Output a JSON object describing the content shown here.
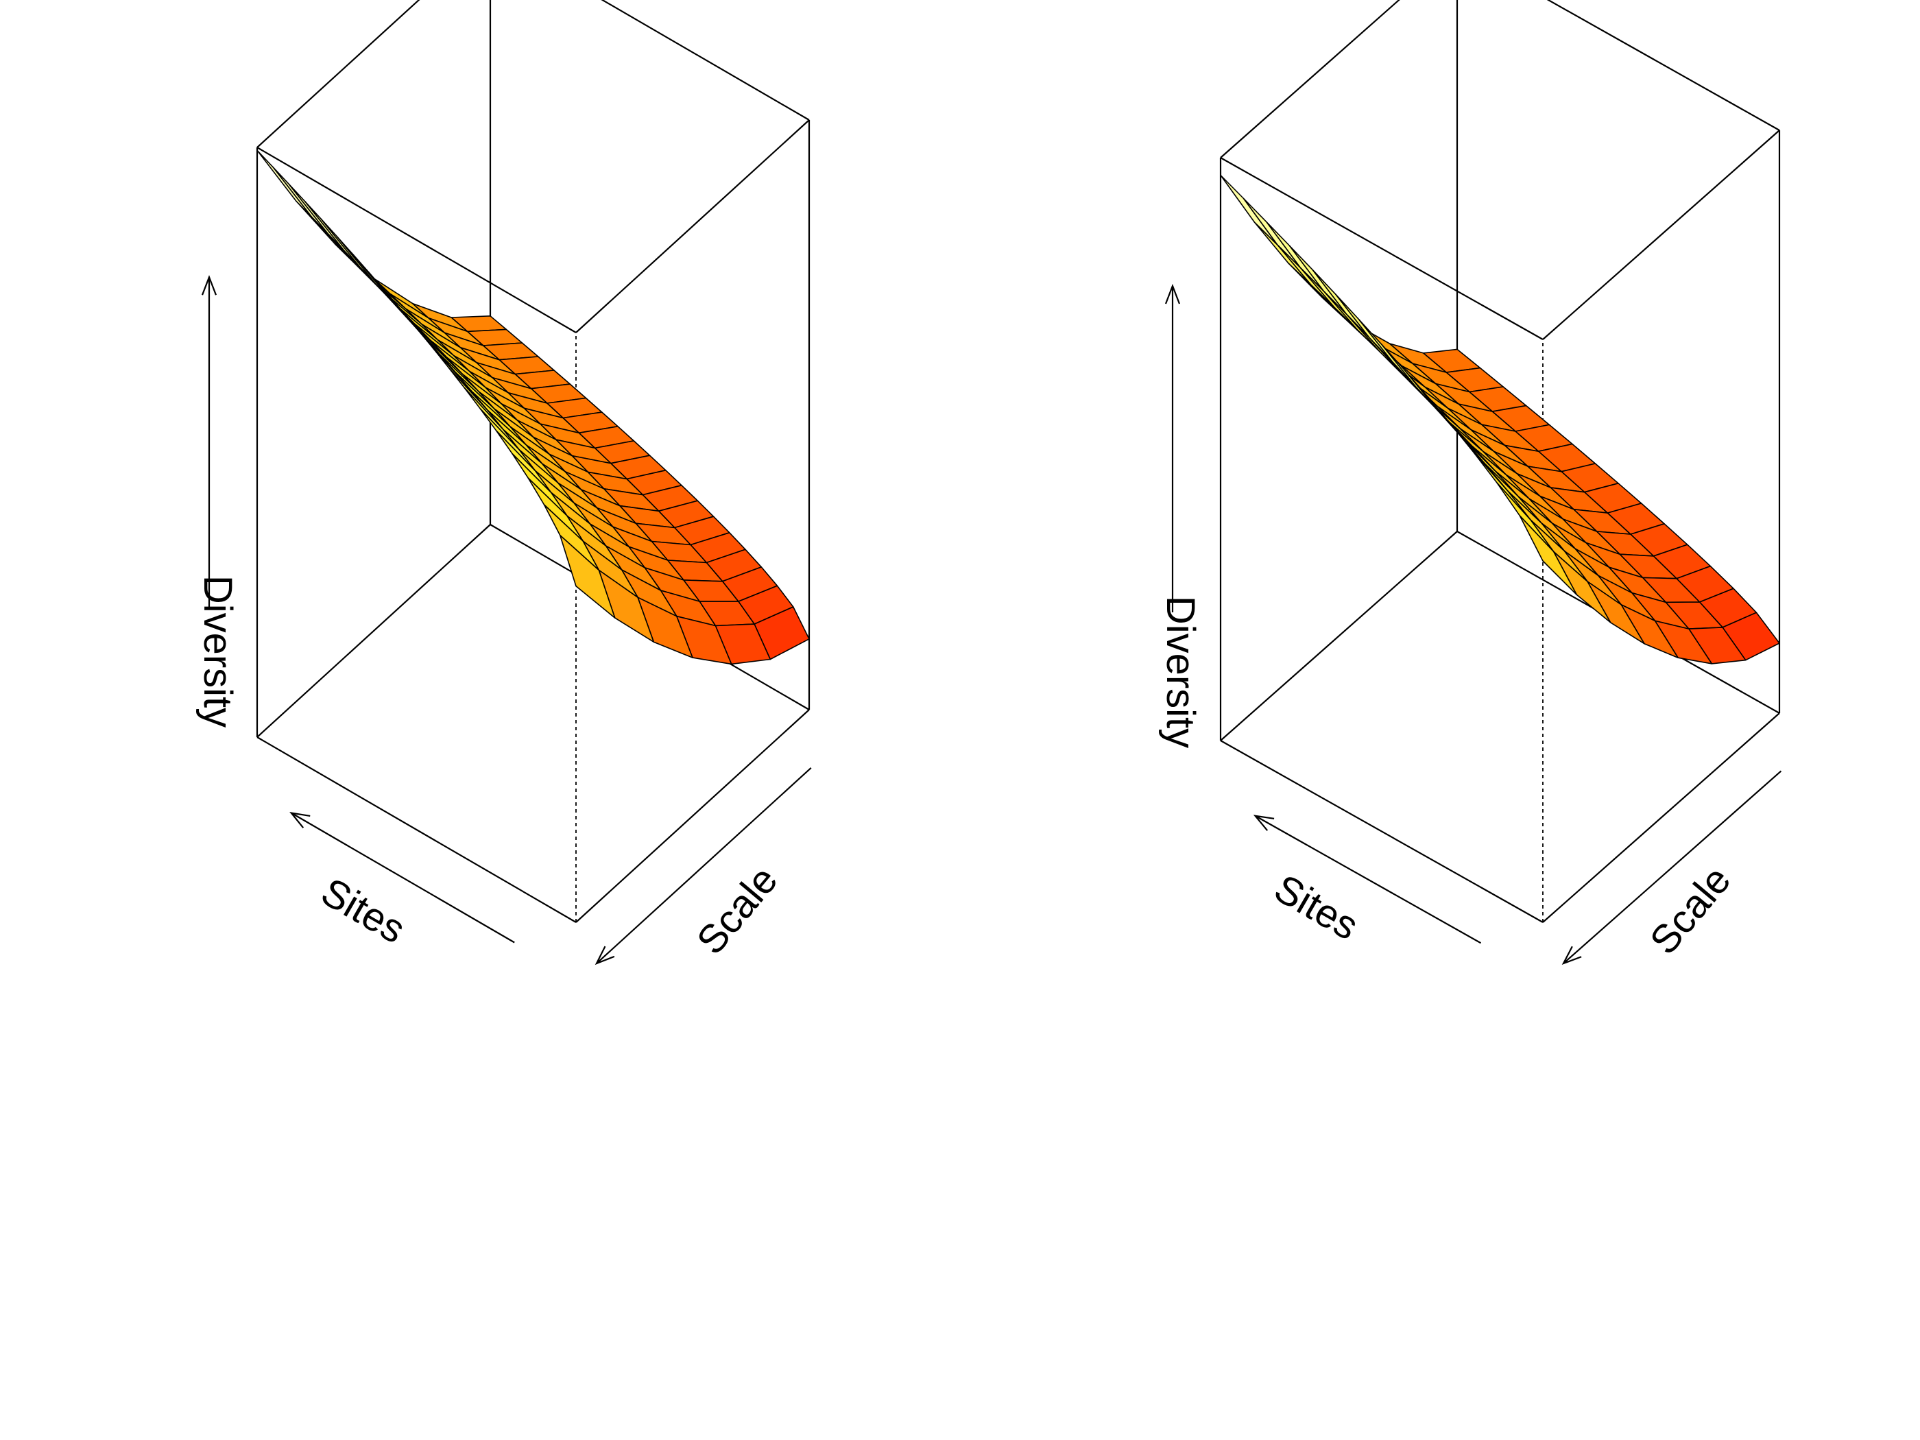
{
  "figure": {
    "background": "#ffffff"
  },
  "chart_data": [
    {
      "type": "surface",
      "xlabel": "Sites",
      "ylabel": "Scale",
      "zlabel": "Diversity",
      "colormap": "heat",
      "grid": {
        "sites": 20,
        "scale": 6
      },
      "z_bands": [
        0.3,
        0.42,
        0.55,
        0.68,
        0.85
      ],
      "surface": {
        "scale_gain": 0.9,
        "sites_gain": 0.85,
        "base": 0.12,
        "sites_exponent": 0.6
      }
    },
    {
      "type": "surface",
      "xlabel": "Sites",
      "ylabel": "Scale",
      "zlabel": "Diversity",
      "colormap": "heat",
      "grid": {
        "sites": 14,
        "scale": 7
      },
      "z_bands": [
        0.3,
        0.42,
        0.55,
        0.68,
        0.85
      ],
      "surface": {
        "scale_gain": 1.0,
        "sites_gain": 0.7,
        "base": 0.12,
        "sites_exponent": 0.7
      }
    }
  ]
}
